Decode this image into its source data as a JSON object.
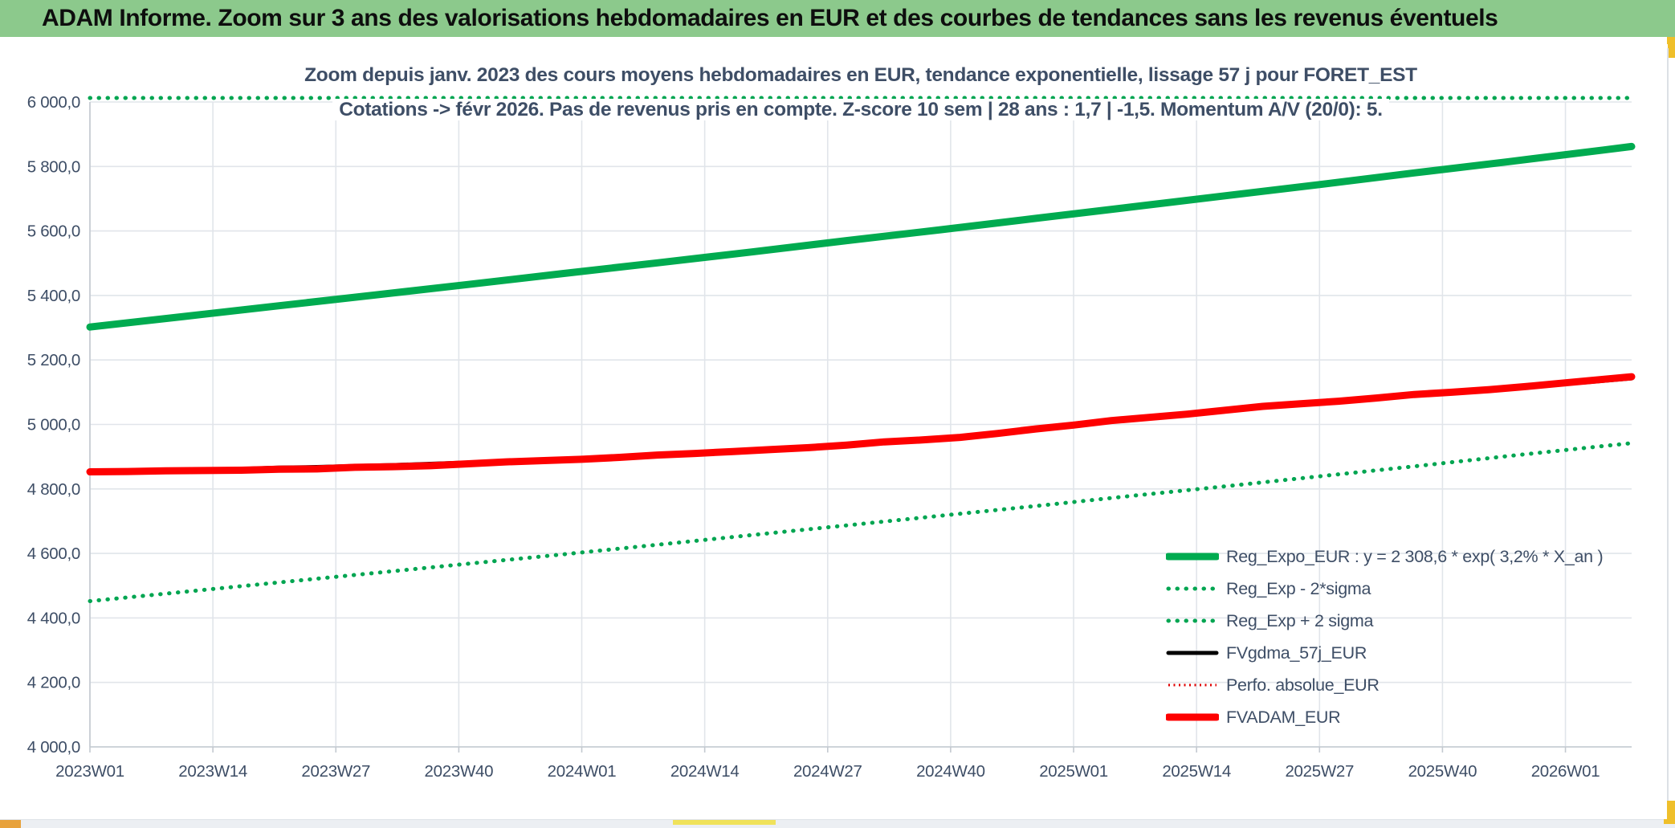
{
  "header": {
    "title": "ADAM Informe. Zoom sur 3 ans des valorisations hebdomadaires en EUR et des courbes de tendances sans les revenus éventuels",
    "bg_color": "#8CC98C"
  },
  "chart_data": {
    "type": "line",
    "title_line1": "Zoom depuis janv. 2023 des cours moyens hebdomadaires en EUR, tendance exponentielle, lissage 57 j pour FORET_EST",
    "title_line2": "Cotations -> févr 2026. Pas de revenus pris en compte. Z-score 10 sem | 28 ans : 1,7 | -1,5. Momentum A/V (20/0): 5.",
    "grid": true,
    "legend_position": "right-middle",
    "ylim": [
      4000,
      6000
    ],
    "ytick_labels": [
      "6 000,0",
      "5 800,0",
      "5 600,0",
      "5 400,0",
      "5 200,0",
      "5 000,0",
      "4 800,0",
      "4 600,0",
      "4 400,0",
      "4 200,0",
      "4 000,0"
    ],
    "ytick_values": [
      6000,
      5800,
      5600,
      5400,
      5200,
      5000,
      4800,
      4600,
      4400,
      4200,
      4000
    ],
    "xtick_labels": [
      "2023W01",
      "2023W14",
      "2023W27",
      "2023W40",
      "2024W01",
      "2024W14",
      "2024W27",
      "2024W40",
      "2025W01",
      "2025W14",
      "2025W27",
      "2025W40",
      "2026W01"
    ],
    "xtick_week_spacing": 13,
    "x_weeks_total": 163,
    "axis_color": "#43536A",
    "series": [
      {
        "name": "Reg_Expo_EUR : y = 2 308,6 * exp( 3,2% *  X_an )",
        "color": "#00AB50",
        "style": "solid",
        "width": 9,
        "points": [
          [
            0,
            5302
          ],
          [
            10,
            5335
          ],
          [
            20,
            5368
          ],
          [
            30,
            5401
          ],
          [
            40,
            5434
          ],
          [
            50,
            5468
          ],
          [
            60,
            5501
          ],
          [
            70,
            5535
          ],
          [
            80,
            5570
          ],
          [
            90,
            5604
          ],
          [
            100,
            5639
          ],
          [
            110,
            5674
          ],
          [
            120,
            5709
          ],
          [
            130,
            5744
          ],
          [
            140,
            5780
          ],
          [
            150,
            5815
          ],
          [
            160,
            5851
          ],
          [
            163,
            5862
          ]
        ]
      },
      {
        "name": "Reg_Exp - 2*sigma",
        "color": "#00A551",
        "style": "dot-round",
        "width": 5,
        "points": [
          [
            0,
            4452
          ],
          [
            10,
            4481
          ],
          [
            20,
            4510
          ],
          [
            30,
            4539
          ],
          [
            40,
            4568
          ],
          [
            50,
            4597
          ],
          [
            60,
            4627
          ],
          [
            70,
            4657
          ],
          [
            80,
            4687
          ],
          [
            90,
            4717
          ],
          [
            100,
            4747
          ],
          [
            110,
            4778
          ],
          [
            120,
            4808
          ],
          [
            130,
            4839
          ],
          [
            140,
            4870
          ],
          [
            150,
            4902
          ],
          [
            160,
            4933
          ],
          [
            163,
            4942
          ]
        ]
      },
      {
        "name": "Reg_Exp + 2 sigma",
        "color": "#00A551",
        "style": "dot-round",
        "width": 5,
        "clipped_top": true,
        "points": [
          [
            0,
            6150
          ],
          [
            163,
            6800
          ]
        ]
      },
      {
        "name": "FVgdma_57j_EUR",
        "color": "#000000",
        "style": "solid",
        "width": 5,
        "points": [
          [
            0,
            4853
          ],
          [
            8,
            4857
          ],
          [
            16,
            4862
          ],
          [
            20,
            4866
          ],
          [
            24,
            4868
          ],
          [
            28,
            4871
          ],
          [
            32,
            4874
          ],
          [
            36,
            4878
          ],
          [
            40,
            4882
          ],
          [
            44,
            4886
          ],
          [
            48,
            4890
          ],
          [
            56,
            4899
          ],
          [
            64,
            4911
          ],
          [
            72,
            4923
          ],
          [
            80,
            4937
          ],
          [
            88,
            4953
          ],
          [
            96,
            4973
          ],
          [
            104,
            4999
          ],
          [
            112,
            5023
          ],
          [
            120,
            5045
          ],
          [
            128,
            5065
          ],
          [
            136,
            5083
          ],
          [
            144,
            5101
          ],
          [
            152,
            5119
          ],
          [
            158,
            5130
          ],
          [
            163,
            5143
          ]
        ]
      },
      {
        "name": "Perfo. absolue_EUR",
        "color": "#E00000",
        "style": "dot-fine",
        "width": 3,
        "points": [
          [
            0,
            4853
          ],
          [
            8,
            4856
          ],
          [
            16,
            4858
          ],
          [
            24,
            4862
          ],
          [
            32,
            4869
          ],
          [
            40,
            4878
          ],
          [
            48,
            4888
          ],
          [
            56,
            4898
          ],
          [
            64,
            4910
          ],
          [
            72,
            4922
          ],
          [
            80,
            4936
          ],
          [
            88,
            4952
          ],
          [
            96,
            4972
          ],
          [
            104,
            4998
          ],
          [
            112,
            5022
          ],
          [
            120,
            5044
          ],
          [
            128,
            5064
          ],
          [
            136,
            5082
          ],
          [
            144,
            5100
          ],
          [
            152,
            5118
          ],
          [
            160,
            5140
          ],
          [
            163,
            5148
          ]
        ]
      },
      {
        "name": "FVADAM_EUR",
        "color": "#FE0000",
        "style": "solid",
        "width": 9,
        "points": [
          [
            0,
            4853
          ],
          [
            4,
            4854
          ],
          [
            8,
            4856
          ],
          [
            12,
            4857
          ],
          [
            16,
            4858
          ],
          [
            20,
            4861
          ],
          [
            24,
            4862
          ],
          [
            28,
            4867
          ],
          [
            32,
            4869
          ],
          [
            36,
            4872
          ],
          [
            40,
            4878
          ],
          [
            44,
            4884
          ],
          [
            48,
            4888
          ],
          [
            52,
            4892
          ],
          [
            56,
            4898
          ],
          [
            60,
            4905
          ],
          [
            64,
            4910
          ],
          [
            68,
            4916
          ],
          [
            72,
            4922
          ],
          [
            76,
            4928
          ],
          [
            80,
            4936
          ],
          [
            84,
            4946
          ],
          [
            88,
            4952
          ],
          [
            92,
            4960
          ],
          [
            96,
            4972
          ],
          [
            100,
            4986
          ],
          [
            104,
            4998
          ],
          [
            108,
            5012
          ],
          [
            112,
            5022
          ],
          [
            116,
            5032
          ],
          [
            120,
            5044
          ],
          [
            124,
            5056
          ],
          [
            128,
            5064
          ],
          [
            132,
            5072
          ],
          [
            136,
            5082
          ],
          [
            140,
            5093
          ],
          [
            144,
            5100
          ],
          [
            148,
            5108
          ],
          [
            152,
            5118
          ],
          [
            156,
            5129
          ],
          [
            160,
            5140
          ],
          [
            163,
            5148
          ]
        ]
      }
    ],
    "draw_order": [
      2,
      1,
      0,
      3,
      4,
      5
    ],
    "colors": {
      "gridline": "#E1E5EA",
      "axis_line": "#C3C9D0",
      "text": "#3E4E66",
      "green_solid": "#00AB50",
      "green_dotted": "#00A551",
      "red": "#FE0000",
      "black": "#000000"
    }
  }
}
